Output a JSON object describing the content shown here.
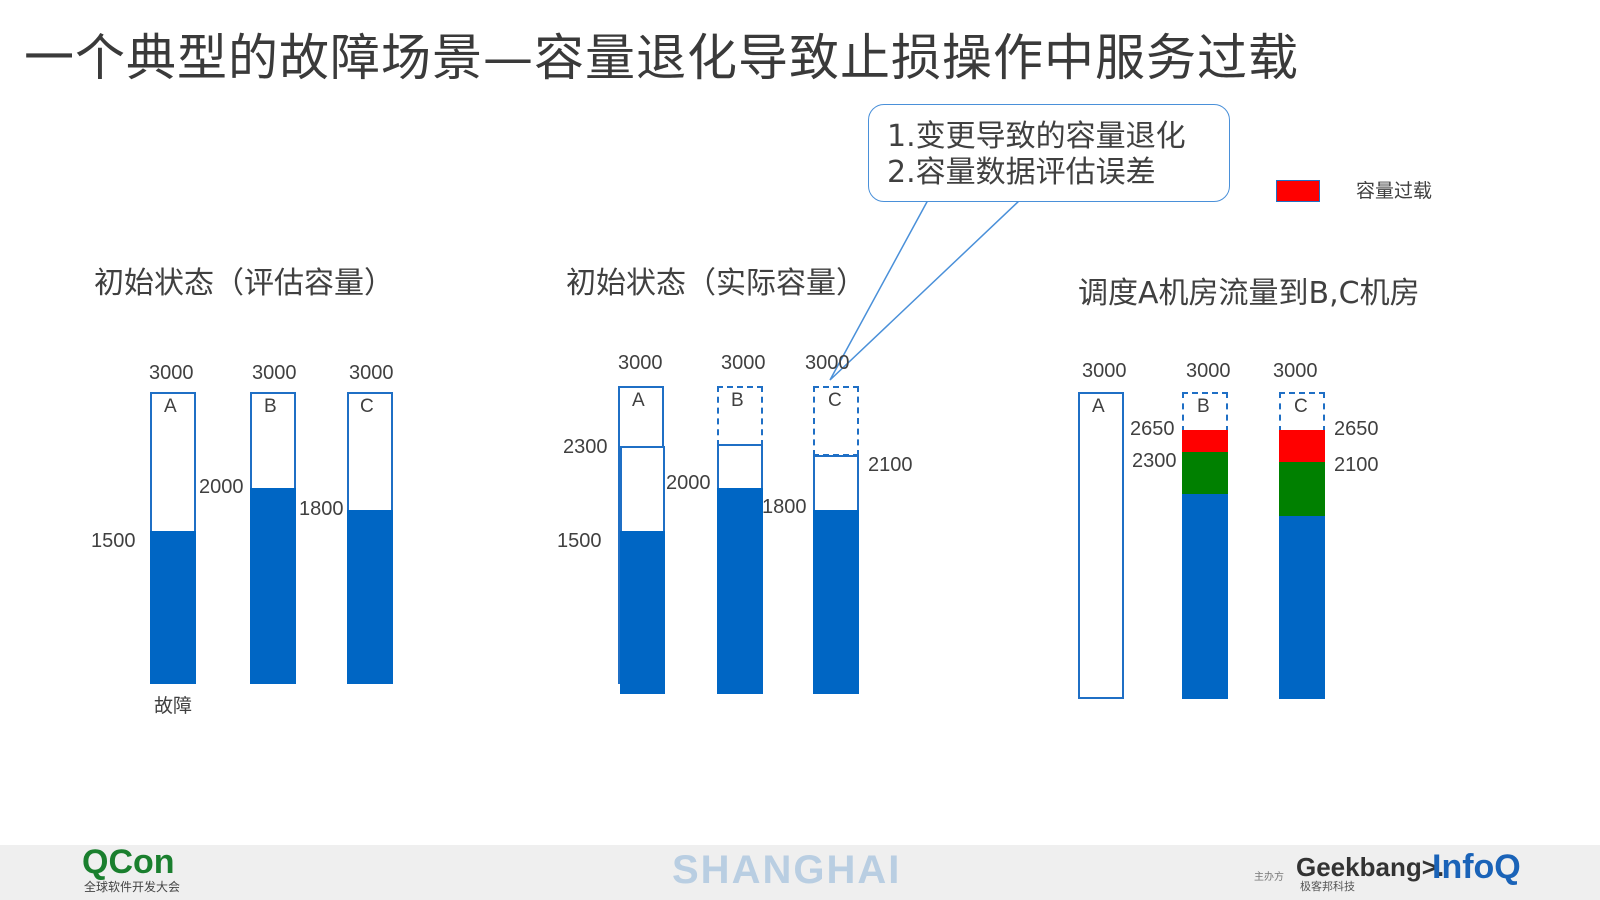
{
  "title": "一个典型的故障场景—容量退化导致止损操作中服务过载",
  "callout": {
    "line1": "1.变更导致的容量退化",
    "line2": "2.容量数据评估误差"
  },
  "legend": {
    "label": "容量过载",
    "color": "#ff0000"
  },
  "colors": {
    "load": "#0066c4",
    "extra_load": "#008000",
    "overload": "#ff0000",
    "outline": "#1f6fc5"
  },
  "panel1": {
    "title": "初始状态（评估容量）",
    "bars": [
      {
        "label": "A",
        "capacity": "3000",
        "load": "1500"
      },
      {
        "label": "B",
        "capacity": "3000",
        "load": "2000"
      },
      {
        "label": "C",
        "capacity": "3000",
        "load": "1800"
      }
    ],
    "fault_label": "故障"
  },
  "panel2": {
    "title": "初始状态（实际容量）",
    "bars": [
      {
        "label": "A",
        "nominal": "3000",
        "actual": "2300",
        "load": "1500"
      },
      {
        "label": "B",
        "nominal": "3000",
        "load": "2000"
      },
      {
        "label": "C",
        "nominal": "3000",
        "actual": "2100",
        "load": "1800"
      }
    ]
  },
  "panel3": {
    "title": "调度A机房流量到B,C机房",
    "bars": [
      {
        "label": "A",
        "capacity": "3000"
      },
      {
        "label": "B",
        "capacity": "3000",
        "load": "2650",
        "actual": "2300"
      },
      {
        "label": "C",
        "capacity": "3000",
        "load": "2650",
        "actual": "2100"
      }
    ]
  },
  "footer": {
    "logo": "QCon",
    "logo_sub": "全球软件开发大会",
    "city": "SHANGHAI",
    "host": "主办方",
    "geek": "Geekbang>.",
    "geek_sub": "极客邦科技",
    "infoq": "InfoQ"
  }
}
